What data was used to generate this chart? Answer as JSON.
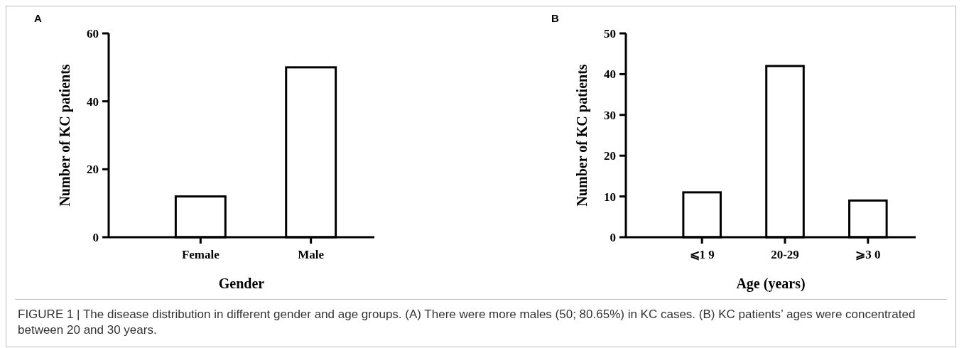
{
  "chart_data": [
    {
      "type": "bar",
      "title": "A",
      "xlabel": "Gender",
      "ylabel": "Number of KC patients",
      "categories": [
        "Female",
        "Male"
      ],
      "values": [
        12,
        50
      ],
      "color": "#ffffff",
      "ylim": [
        0,
        60
      ],
      "yticks": [
        0,
        20,
        40,
        60
      ],
      "grid": false
    },
    {
      "type": "bar",
      "title": "B",
      "xlabel": "Age (years)",
      "ylabel": "Number of KC patients",
      "categories": [
        "⩽1 9",
        "20-29",
        "⩾3 0"
      ],
      "values": [
        11,
        42,
        9
      ],
      "color": "#ffffff",
      "ylim": [
        0,
        50
      ],
      "yticks": [
        0,
        10,
        20,
        30,
        40,
        50
      ],
      "grid": false,
      "annotations": [
        "FIGURE 1 | The disease distribution in different gender and age groups. (A) There were more males (50; 80.65%) in KC cases. (B) KC patients’ ages were concentrated between 20 and 30 years."
      ]
    }
  ]
}
